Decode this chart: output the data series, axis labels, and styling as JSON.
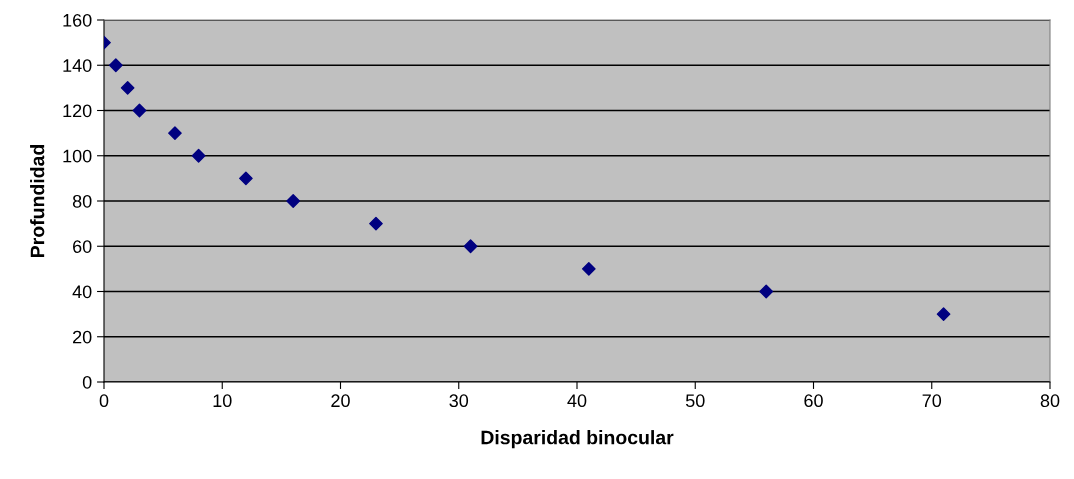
{
  "chart_data": {
    "type": "scatter",
    "xlabel": "Disparidad binocular",
    "ylabel": "Profundidad",
    "x": [
      0,
      1,
      2,
      3,
      6,
      8,
      12,
      16,
      23,
      31,
      41,
      56,
      71
    ],
    "series": [
      {
        "color": "#000080",
        "values": [
          150,
          140,
          130,
          120,
          110,
          100,
          90,
          80,
          70,
          60,
          50,
          40,
          30
        ]
      }
    ],
    "xlim": [
      0,
      80
    ],
    "xticks": [
      0,
      10,
      20,
      30,
      40,
      50,
      60,
      70,
      80
    ],
    "ylim": [
      0,
      160
    ],
    "yticks": [
      0,
      20,
      40,
      60,
      80,
      100,
      120,
      140,
      160
    ],
    "grid": "y",
    "legend": false,
    "marker": "diamond"
  }
}
